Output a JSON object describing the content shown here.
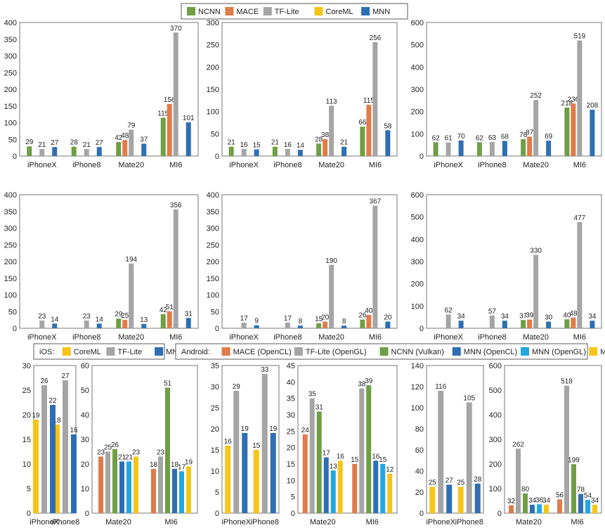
{
  "colors": {
    "NCNN": "#6f9e45",
    "MACE": "#e07b4a",
    "TF-Lite": "#a5a5a5",
    "CoreML": "#f5c518",
    "MNN": "#2e6fb3",
    "MACE (OpenCL)": "#e07b4a",
    "TF-Lite (OpenGL)": "#a5a5a5",
    "NCNN (Vulkan)": "#6f9e45",
    "MNN (OpenCL)": "#2e6fb3",
    "MNN (OpenGL)": "#22a7e0",
    "MNN (Vulkan)": "#f5c518"
  },
  "legends": {
    "top": [
      "NCNN",
      "MACE",
      "TF-Lite",
      "CoreML",
      "MNN"
    ],
    "ios_title": "iOS:",
    "ios": [
      "CoreML",
      "TF-Lite",
      "MNN"
    ],
    "android_title": "Android:",
    "android": [
      "MACE (OpenCL)",
      "TF-Lite (OpenGL)",
      "NCNN (Vulkan)",
      "MNN (OpenCL)",
      "MNN (OpenGL)",
      "MNN (Vulkan)"
    ]
  },
  "chart_data": [
    {
      "type": "bar",
      "categories": [
        "iPhoneX",
        "iPhone8",
        "Mate20",
        "MI6"
      ],
      "ylim": [
        0,
        400
      ],
      "yticks": [
        0,
        50,
        100,
        150,
        200,
        250,
        300,
        350,
        400
      ],
      "series": [
        {
          "name": "NCNN",
          "values": [
            29,
            28,
            42,
            115
          ]
        },
        {
          "name": "MACE",
          "values": [
            null,
            null,
            48,
            156
          ]
        },
        {
          "name": "TF-Lite",
          "values": [
            21,
            21,
            79,
            370
          ]
        },
        {
          "name": "CoreML",
          "values": [
            null,
            null,
            null,
            null
          ]
        },
        {
          "name": "MNN",
          "values": [
            27,
            27,
            37,
            101
          ]
        }
      ]
    },
    {
      "type": "bar",
      "categories": [
        "iPhoneX",
        "iPhone8",
        "Mate20",
        "MI6"
      ],
      "ylim": [
        0,
        300
      ],
      "yticks": [
        0,
        50,
        100,
        150,
        200,
        250,
        300
      ],
      "series": [
        {
          "name": "NCNN",
          "values": [
            21,
            21,
            28,
            66
          ]
        },
        {
          "name": "MACE",
          "values": [
            null,
            null,
            38,
            115
          ]
        },
        {
          "name": "TF-Lite",
          "values": [
            16,
            16,
            113,
            256
          ]
        },
        {
          "name": "CoreML",
          "values": [
            null,
            null,
            null,
            null
          ]
        },
        {
          "name": "MNN",
          "values": [
            15,
            14,
            21,
            58
          ]
        }
      ]
    },
    {
      "type": "bar",
      "categories": [
        "iPhoneX",
        "iPhone8",
        "Mate20",
        "MI6"
      ],
      "ylim": [
        0,
        600
      ],
      "yticks": [
        0,
        100,
        200,
        300,
        400,
        500,
        600
      ],
      "series": [
        {
          "name": "NCNN",
          "values": [
            62,
            62,
            76,
            218
          ]
        },
        {
          "name": "MACE",
          "values": [
            null,
            null,
            87,
            236
          ]
        },
        {
          "name": "TF-Lite",
          "values": [
            61,
            63,
            252,
            519
          ]
        },
        {
          "name": "CoreML",
          "values": [
            null,
            null,
            null,
            null
          ]
        },
        {
          "name": "MNN",
          "values": [
            70,
            68,
            69,
            208
          ]
        }
      ]
    },
    {
      "type": "bar",
      "categories": [
        "iPhoneX",
        "iPhone8",
        "Mate20",
        "MI6"
      ],
      "ylim": [
        0,
        400
      ],
      "yticks": [
        0,
        50,
        100,
        150,
        200,
        250,
        300,
        350,
        400
      ],
      "series": [
        {
          "name": "NCNN",
          "values": [
            null,
            null,
            29,
            42
          ]
        },
        {
          "name": "MACE",
          "values": [
            null,
            null,
            25,
            51
          ]
        },
        {
          "name": "TF-Lite",
          "values": [
            23,
            23,
            194,
            356
          ]
        },
        {
          "name": "CoreML",
          "values": [
            null,
            null,
            null,
            null
          ]
        },
        {
          "name": "MNN",
          "values": [
            14,
            14,
            13,
            31
          ]
        }
      ]
    },
    {
      "type": "bar",
      "categories": [
        "iPhoneX",
        "iPhone8",
        "Mate20",
        "MI6"
      ],
      "ylim": [
        0,
        400
      ],
      "yticks": [
        0,
        50,
        100,
        150,
        200,
        250,
        300,
        350,
        400
      ],
      "series": [
        {
          "name": "NCNN",
          "values": [
            null,
            null,
            15,
            26
          ]
        },
        {
          "name": "MACE",
          "values": [
            null,
            null,
            20,
            40
          ]
        },
        {
          "name": "TF-Lite",
          "values": [
            17,
            17,
            190,
            367
          ]
        },
        {
          "name": "CoreML",
          "values": [
            null,
            null,
            null,
            null
          ]
        },
        {
          "name": "MNN",
          "values": [
            9,
            8,
            8,
            20
          ]
        }
      ]
    },
    {
      "type": "bar",
      "categories": [
        "iPhoneX",
        "iPhone8",
        "Mate20",
        "MI6"
      ],
      "ylim": [
        0,
        600
      ],
      "yticks": [
        0,
        100,
        200,
        300,
        400,
        500,
        600
      ],
      "series": [
        {
          "name": "NCNN",
          "values": [
            null,
            null,
            37,
            40
          ]
        },
        {
          "name": "MACE",
          "values": [
            null,
            null,
            39,
            48
          ]
        },
        {
          "name": "TF-Lite",
          "values": [
            62,
            57,
            330,
            477
          ]
        },
        {
          "name": "CoreML",
          "values": [
            null,
            null,
            null,
            null
          ]
        },
        {
          "name": "MNN",
          "values": [
            34,
            34,
            30,
            34
          ]
        }
      ]
    },
    {
      "type": "bar",
      "categories": [
        "iPhoneX",
        "iPhone8"
      ],
      "ylim": [
        0,
        30
      ],
      "yticks": [
        0,
        5,
        10,
        15,
        20,
        25,
        30
      ],
      "series": [
        {
          "name": "CoreML",
          "values": [
            19,
            18
          ]
        },
        {
          "name": "TF-Lite",
          "values": [
            26,
            27
          ]
        },
        {
          "name": "MNN",
          "values": [
            22,
            16
          ]
        }
      ]
    },
    {
      "type": "bar",
      "categories": [
        "Mate20",
        "MI6"
      ],
      "ylim": [
        0,
        60
      ],
      "yticks": [
        0,
        10,
        20,
        30,
        40,
        50,
        60
      ],
      "series": [
        {
          "name": "MACE (OpenCL)",
          "values": [
            23,
            18
          ]
        },
        {
          "name": "TF-Lite (OpenGL)",
          "values": [
            25,
            23
          ]
        },
        {
          "name": "NCNN (Vulkan)",
          "values": [
            26,
            51
          ]
        },
        {
          "name": "MNN (OpenCL)",
          "values": [
            21,
            18
          ]
        },
        {
          "name": "MNN (OpenGL)",
          "values": [
            21,
            17
          ]
        },
        {
          "name": "MNN (Vulkan)",
          "values": [
            23,
            19
          ]
        }
      ]
    },
    {
      "type": "bar",
      "categories": [
        "iPhoneX",
        "iPhone8"
      ],
      "ylim": [
        0,
        35
      ],
      "yticks": [
        0,
        5,
        10,
        15,
        20,
        25,
        30,
        35
      ],
      "series": [
        {
          "name": "CoreML",
          "values": [
            16,
            15
          ]
        },
        {
          "name": "TF-Lite",
          "values": [
            29,
            33
          ]
        },
        {
          "name": "MNN",
          "values": [
            19,
            19
          ]
        }
      ]
    },
    {
      "type": "bar",
      "categories": [
        "Mate20",
        "MI6"
      ],
      "ylim": [
        0,
        45
      ],
      "yticks": [
        0,
        5,
        10,
        15,
        20,
        25,
        30,
        35,
        40,
        45
      ],
      "series": [
        {
          "name": "MACE (OpenCL)",
          "values": [
            24,
            15
          ]
        },
        {
          "name": "TF-Lite (OpenGL)",
          "values": [
            35,
            38
          ]
        },
        {
          "name": "NCNN (Vulkan)",
          "values": [
            31,
            39
          ]
        },
        {
          "name": "MNN (OpenCL)",
          "values": [
            17,
            16
          ]
        },
        {
          "name": "MNN (OpenGL)",
          "values": [
            13,
            15
          ]
        },
        {
          "name": "MNN (Vulkan)",
          "values": [
            16,
            12
          ]
        }
      ]
    },
    {
      "type": "bar",
      "categories": [
        "iPhoneX",
        "iPhone8"
      ],
      "ylim": [
        0,
        140
      ],
      "yticks": [
        0,
        20,
        40,
        60,
        80,
        100,
        120,
        140
      ],
      "series": [
        {
          "name": "CoreML",
          "values": [
            25,
            25
          ]
        },
        {
          "name": "TF-Lite",
          "values": [
            116,
            105
          ]
        },
        {
          "name": "MNN",
          "values": [
            27,
            28
          ]
        }
      ]
    },
    {
      "type": "bar",
      "categories": [
        "Mate20",
        "MI6"
      ],
      "ylim": [
        0,
        600
      ],
      "yticks": [
        0,
        100,
        200,
        300,
        400,
        500,
        600
      ],
      "series": [
        {
          "name": "MACE (OpenCL)",
          "values": [
            32,
            56
          ]
        },
        {
          "name": "TF-Lite (OpenGL)",
          "values": [
            262,
            518
          ]
        },
        {
          "name": "NCNN (Vulkan)",
          "values": [
            80,
            199
          ]
        },
        {
          "name": "MNN (OpenCL)",
          "values": [
            34,
            78
          ]
        },
        {
          "name": "MNN (OpenGL)",
          "values": [
            36,
            54
          ]
        },
        {
          "name": "MNN (Vulkan)",
          "values": [
            34,
            34
          ]
        }
      ]
    }
  ]
}
